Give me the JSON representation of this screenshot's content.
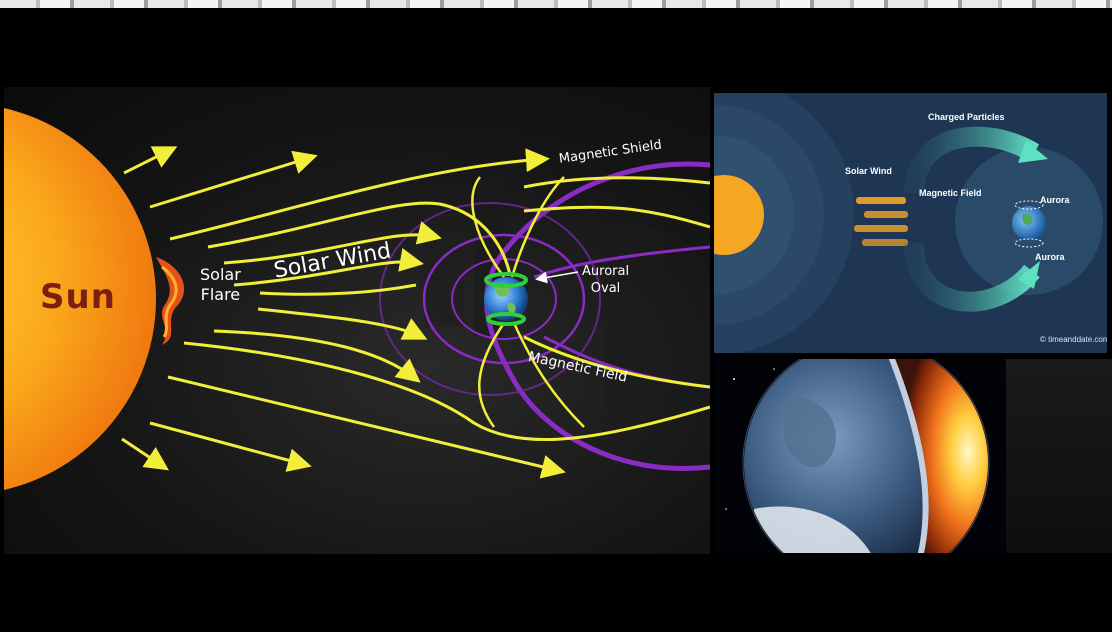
{
  "main_diagram": {
    "sun_label": "Sun",
    "solar_wind_label": "Solar Wind",
    "solar_flare_label_line1": "Solar",
    "solar_flare_label_line2": "Flare",
    "magnetic_shield_label": "Magnetic Shield",
    "auroral_oval_label_line1": "Auroral",
    "auroral_oval_label_line2": "Oval",
    "magnetic_field_label": "Magnetic Field",
    "colors": {
      "sun": "#f7a11a",
      "wind_arrows": "#f2ee3a",
      "magnetic_shield": "#8a2bc4",
      "auroral_oval": "#2fcf3a"
    }
  },
  "timeanddate_diagram": {
    "charged_particles_label": "Charged Particles",
    "solar_wind_label": "Solar Wind",
    "magnetic_field_label": "Magnetic Field",
    "aurora_top_label": "Aurora",
    "aurora_bottom_label": "Aurora",
    "credit": "© timeanddate.com",
    "colors": {
      "background": "#1e3554",
      "sun": "#f5a623",
      "particle_stream": "#4fd6b8"
    }
  },
  "earth_core_image": {
    "icon": "earth-cross-section-icon"
  }
}
